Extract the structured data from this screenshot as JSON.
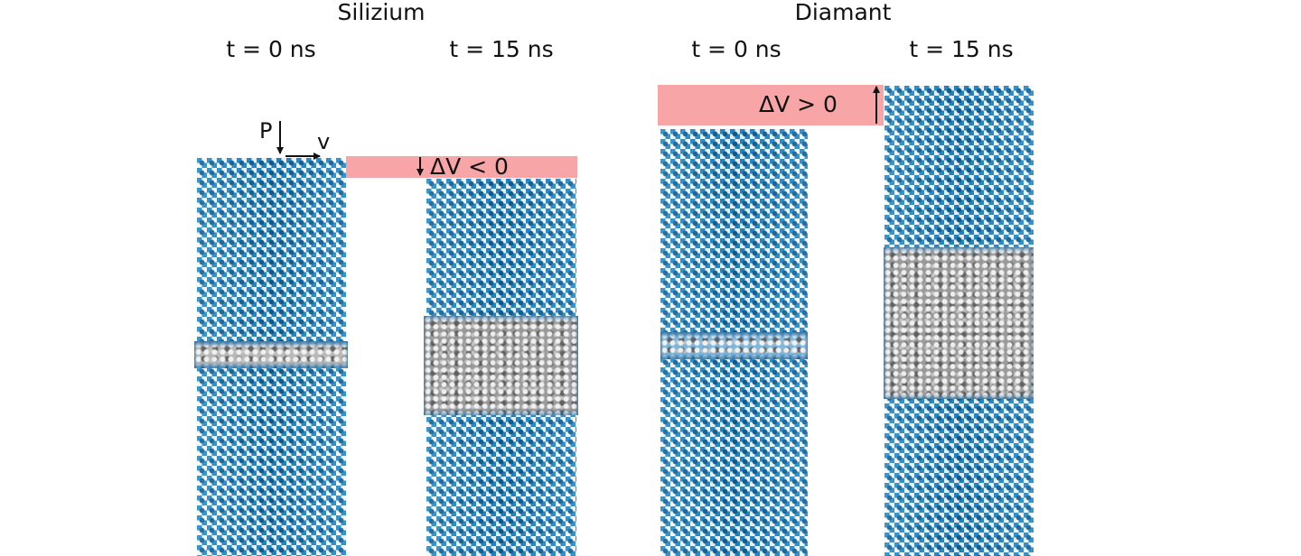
{
  "headings": {
    "silicon": "Silizium",
    "diamond": "Diamant"
  },
  "time_labels": {
    "si_t0": "t = 0 ns",
    "si_t15": "t = 15 ns",
    "di_t0": "t = 0 ns",
    "di_t15": "t = 15 ns"
  },
  "annotations": {
    "pressure": "P",
    "velocity": "v",
    "volume_decrease": "ΔV < 0",
    "volume_increase": "ΔV > 0"
  },
  "colors": {
    "crystal_atoms": "#1f88c7",
    "amorphous_atoms": "#9a9a9a",
    "volume_bar": "#f7a5a7",
    "arrows": "#111111"
  }
}
